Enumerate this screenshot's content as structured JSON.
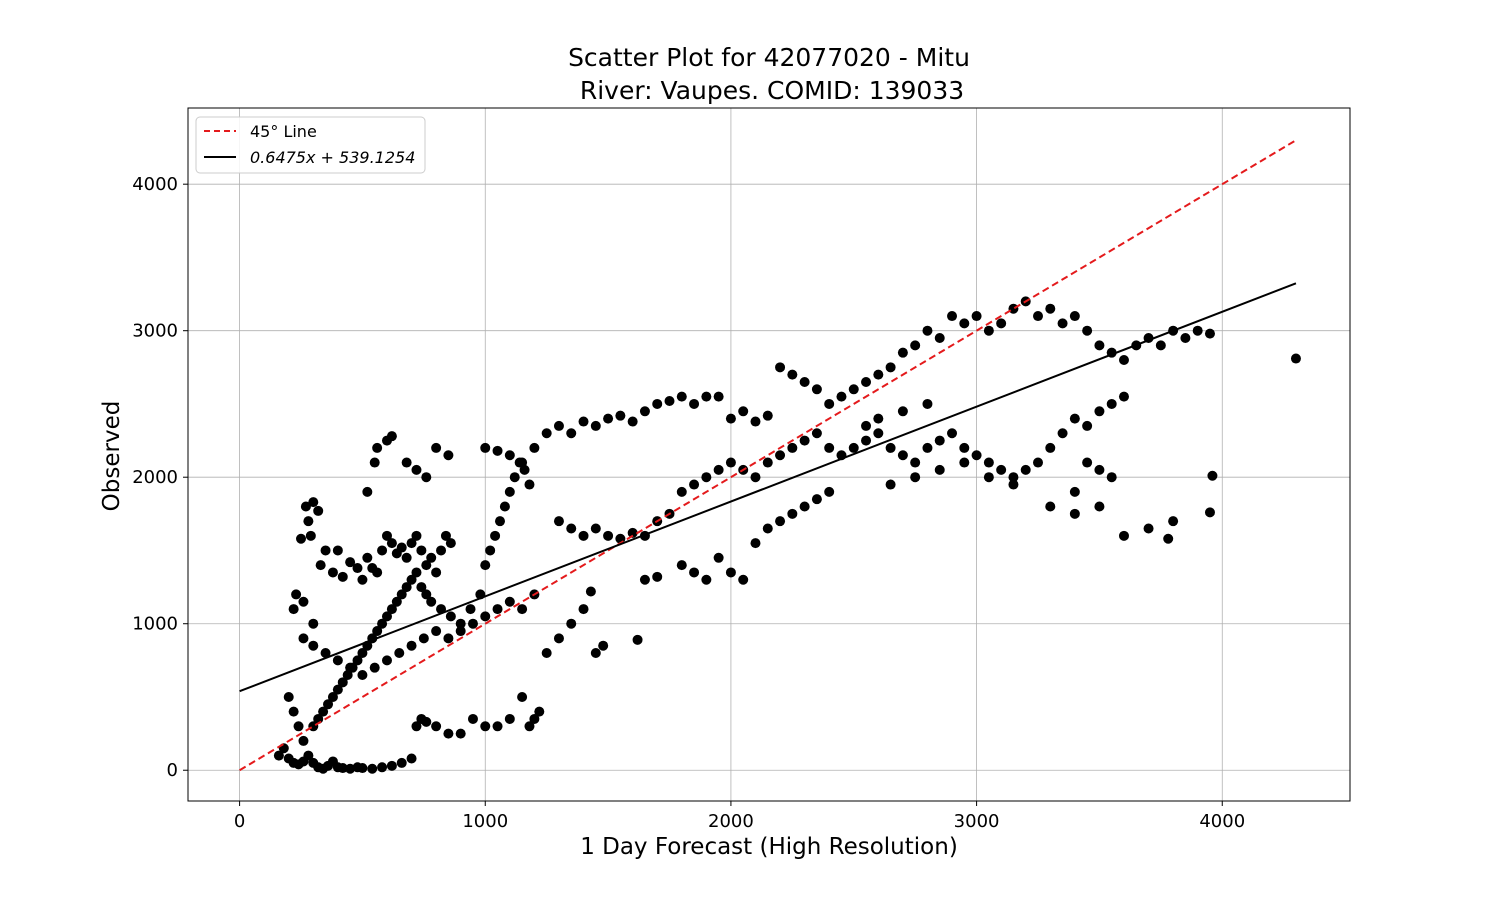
{
  "chart_data": {
    "type": "scatter",
    "title_lines": [
      "Scatter Plot for 42077020 - Mitu",
      "River: Vaupes. COMID: 139033"
    ],
    "xlabel": "1 Day Forecast (High Resolution)",
    "ylabel": "Observed",
    "xlim": [
      -210,
      4520
    ],
    "ylim": [
      -210,
      4520
    ],
    "xticks": [
      "0",
      "1000",
      "2000",
      "3000",
      "4000"
    ],
    "yticks": [
      "0",
      "1000",
      "2000",
      "3000",
      "4000"
    ],
    "grid": true,
    "legend_position": "top-left",
    "legend": [
      {
        "label": "45° Line",
        "style": "dashed",
        "color": "#e41a1c"
      },
      {
        "label": "0.6475x + 539.1254",
        "style": "solid",
        "color": "#000000"
      }
    ],
    "lines": [
      {
        "type": "identity",
        "x": [
          0,
          4300
        ],
        "y": [
          0,
          4300
        ],
        "color": "#e41a1c",
        "dash": true
      },
      {
        "type": "fit",
        "slope": 0.6475,
        "intercept": 539.1254,
        "x": [
          0,
          4300
        ],
        "color": "#000000",
        "dash": false
      }
    ],
    "point_color": "#000000",
    "points": [
      [
        270,
        1800
      ],
      [
        300,
        1830
      ],
      [
        320,
        1770
      ],
      [
        280,
        1700
      ],
      [
        290,
        1600
      ],
      [
        250,
        1580
      ],
      [
        230,
        1200
      ],
      [
        260,
        1150
      ],
      [
        220,
        1100
      ],
      [
        300,
        1000
      ],
      [
        350,
        1500
      ],
      [
        330,
        1400
      ],
      [
        380,
        1350
      ],
      [
        400,
        1500
      ],
      [
        420,
        1320
      ],
      [
        450,
        1420
      ],
      [
        480,
        1380
      ],
      [
        500,
        1300
      ],
      [
        520,
        1450
      ],
      [
        540,
        1380
      ],
      [
        560,
        1350
      ],
      [
        580,
        1500
      ],
      [
        600,
        1600
      ],
      [
        620,
        1550
      ],
      [
        640,
        1480
      ],
      [
        660,
        1520
      ],
      [
        680,
        1450
      ],
      [
        700,
        1550
      ],
      [
        720,
        1600
      ],
      [
        740,
        1500
      ],
      [
        760,
        1400
      ],
      [
        780,
        1450
      ],
      [
        800,
        1350
      ],
      [
        820,
        1500
      ],
      [
        840,
        1600
      ],
      [
        860,
        1550
      ],
      [
        600,
        2250
      ],
      [
        620,
        2280
      ],
      [
        560,
        2200
      ],
      [
        550,
        2100
      ],
      [
        680,
        2100
      ],
      [
        720,
        2050
      ],
      [
        760,
        2000
      ],
      [
        800,
        2200
      ],
      [
        850,
        2150
      ],
      [
        520,
        1900
      ],
      [
        260,
        900
      ],
      [
        300,
        850
      ],
      [
        350,
        800
      ],
      [
        400,
        750
      ],
      [
        450,
        700
      ],
      [
        500,
        650
      ],
      [
        550,
        700
      ],
      [
        600,
        750
      ],
      [
        650,
        800
      ],
      [
        700,
        850
      ],
      [
        750,
        900
      ],
      [
        800,
        950
      ],
      [
        850,
        900
      ],
      [
        900,
        950
      ],
      [
        950,
        1000
      ],
      [
        1000,
        1050
      ],
      [
        1050,
        1100
      ],
      [
        1100,
        1150
      ],
      [
        1150,
        1100
      ],
      [
        1200,
        1200
      ],
      [
        200,
        500
      ],
      [
        220,
        400
      ],
      [
        240,
        300
      ],
      [
        260,
        200
      ],
      [
        280,
        100
      ],
      [
        300,
        50
      ],
      [
        320,
        20
      ],
      [
        340,
        10
      ],
      [
        360,
        30
      ],
      [
        380,
        60
      ],
      [
        400,
        20
      ],
      [
        420,
        15
      ],
      [
        450,
        10
      ],
      [
        480,
        20
      ],
      [
        500,
        15
      ],
      [
        540,
        10
      ],
      [
        580,
        20
      ],
      [
        620,
        30
      ],
      [
        660,
        50
      ],
      [
        700,
        80
      ],
      [
        720,
        300
      ],
      [
        740,
        350
      ],
      [
        760,
        330
      ],
      [
        800,
        300
      ],
      [
        850,
        250
      ],
      [
        900,
        250
      ],
      [
        950,
        350
      ],
      [
        1000,
        300
      ],
      [
        1050,
        300
      ],
      [
        1100,
        350
      ],
      [
        1150,
        500
      ],
      [
        1180,
        300
      ],
      [
        1200,
        350
      ],
      [
        1220,
        400
      ],
      [
        180,
        150
      ],
      [
        160,
        100
      ],
      [
        200,
        80
      ],
      [
        220,
        50
      ],
      [
        240,
        40
      ],
      [
        260,
        60
      ],
      [
        300,
        300
      ],
      [
        320,
        350
      ],
      [
        340,
        400
      ],
      [
        360,
        450
      ],
      [
        380,
        500
      ],
      [
        400,
        550
      ],
      [
        420,
        600
      ],
      [
        440,
        650
      ],
      [
        460,
        700
      ],
      [
        480,
        750
      ],
      [
        500,
        800
      ],
      [
        520,
        850
      ],
      [
        540,
        900
      ],
      [
        560,
        950
      ],
      [
        580,
        1000
      ],
      [
        600,
        1050
      ],
      [
        620,
        1100
      ],
      [
        640,
        1150
      ],
      [
        660,
        1200
      ],
      [
        680,
        1250
      ],
      [
        700,
        1300
      ],
      [
        720,
        1350
      ],
      [
        740,
        1250
      ],
      [
        760,
        1200
      ],
      [
        780,
        1150
      ],
      [
        820,
        1100
      ],
      [
        860,
        1050
      ],
      [
        900,
        1000
      ],
      [
        940,
        1100
      ],
      [
        980,
        1200
      ],
      [
        1000,
        1400
      ],
      [
        1020,
        1500
      ],
      [
        1040,
        1600
      ],
      [
        1060,
        1700
      ],
      [
        1080,
        1800
      ],
      [
        1100,
        1900
      ],
      [
        1120,
        2000
      ],
      [
        1140,
        2100
      ],
      [
        1160,
        2050
      ],
      [
        1180,
        1950
      ],
      [
        1000,
        2200
      ],
      [
        1050,
        2180
      ],
      [
        1100,
        2150
      ],
      [
        1150,
        2100
      ],
      [
        1200,
        2200
      ],
      [
        1250,
        2300
      ],
      [
        1300,
        2350
      ],
      [
        1350,
        2300
      ],
      [
        1400,
        2380
      ],
      [
        1450,
        2350
      ],
      [
        1500,
        2400
      ],
      [
        1550,
        2420
      ],
      [
        1600,
        2380
      ],
      [
        1650,
        2450
      ],
      [
        1700,
        2500
      ],
      [
        1750,
        2520
      ],
      [
        1800,
        2550
      ],
      [
        1850,
        2500
      ],
      [
        1900,
        2550
      ],
      [
        1950,
        2550
      ],
      [
        2000,
        2400
      ],
      [
        2050,
        2450
      ],
      [
        2100,
        2380
      ],
      [
        2150,
        2420
      ],
      [
        2200,
        2750
      ],
      [
        2250,
        2700
      ],
      [
        2300,
        2650
      ],
      [
        2350,
        2600
      ],
      [
        2400,
        2500
      ],
      [
        2450,
        2550
      ],
      [
        2500,
        2600
      ],
      [
        2550,
        2650
      ],
      [
        2600,
        2700
      ],
      [
        2650,
        2750
      ],
      [
        2700,
        2850
      ],
      [
        2750,
        2900
      ],
      [
        2800,
        3000
      ],
      [
        2850,
        2950
      ],
      [
        2900,
        3100
      ],
      [
        2950,
        3050
      ],
      [
        3000,
        3100
      ],
      [
        3050,
        3000
      ],
      [
        3100,
        3050
      ],
      [
        3150,
        3150
      ],
      [
        3200,
        3200
      ],
      [
        3250,
        3100
      ],
      [
        3300,
        3150
      ],
      [
        3350,
        3050
      ],
      [
        3400,
        3100
      ],
      [
        3450,
        3000
      ],
      [
        3500,
        2900
      ],
      [
        3550,
        2850
      ],
      [
        3600,
        2800
      ],
      [
        3650,
        2900
      ],
      [
        3700,
        2950
      ],
      [
        3750,
        2900
      ],
      [
        3800,
        3000
      ],
      [
        3850,
        2950
      ],
      [
        3900,
        3000
      ],
      [
        3950,
        2980
      ],
      [
        1300,
        1700
      ],
      [
        1350,
        1650
      ],
      [
        1400,
        1600
      ],
      [
        1450,
        1650
      ],
      [
        1500,
        1600
      ],
      [
        1550,
        1580
      ],
      [
        1600,
        1620
      ],
      [
        1650,
        1600
      ],
      [
        1700,
        1700
      ],
      [
        1750,
        1750
      ],
      [
        1800,
        1900
      ],
      [
        1850,
        1950
      ],
      [
        1900,
        2000
      ],
      [
        1950,
        2050
      ],
      [
        2000,
        2100
      ],
      [
        2050,
        2050
      ],
      [
        2100,
        2000
      ],
      [
        2150,
        2100
      ],
      [
        2200,
        2150
      ],
      [
        2250,
        2200
      ],
      [
        2300,
        2250
      ],
      [
        2350,
        2300
      ],
      [
        2400,
        2200
      ],
      [
        2450,
        2150
      ],
      [
        2500,
        2200
      ],
      [
        2550,
        2250
      ],
      [
        2600,
        2300
      ],
      [
        2650,
        2200
      ],
      [
        2700,
        2150
      ],
      [
        2750,
        2100
      ],
      [
        2800,
        2200
      ],
      [
        2850,
        2250
      ],
      [
        2900,
        2300
      ],
      [
        2950,
        2200
      ],
      [
        3000,
        2150
      ],
      [
        3050,
        2100
      ],
      [
        3100,
        2050
      ],
      [
        3150,
        2000
      ],
      [
        3200,
        2050
      ],
      [
        3250,
        2100
      ],
      [
        3300,
        2200
      ],
      [
        3350,
        2300
      ],
      [
        3400,
        2400
      ],
      [
        3450,
        2350
      ],
      [
        3500,
        2450
      ],
      [
        3550,
        2500
      ],
      [
        3600,
        2550
      ],
      [
        1800,
        1400
      ],
      [
        1850,
        1350
      ],
      [
        1900,
        1300
      ],
      [
        1950,
        1450
      ],
      [
        2000,
        1350
      ],
      [
        2050,
        1300
      ],
      [
        2100,
        1550
      ],
      [
        2150,
        1650
      ],
      [
        2200,
        1700
      ],
      [
        2250,
        1750
      ],
      [
        2300,
        1800
      ],
      [
        2350,
        1850
      ],
      [
        2400,
        1900
      ],
      [
        3300,
        1800
      ],
      [
        3400,
        1750
      ],
      [
        3500,
        1800
      ],
      [
        3600,
        1600
      ],
      [
        3700,
        1650
      ],
      [
        3780,
        1580
      ],
      [
        3800,
        1700
      ],
      [
        3950,
        1760
      ],
      [
        3960,
        2010
      ],
      [
        4300,
        2810
      ],
      [
        3550,
        2000
      ],
      [
        3500,
        2050
      ],
      [
        3450,
        2100
      ],
      [
        3400,
        1900
      ],
      [
        1620,
        890
      ],
      [
        1650,
        1300
      ],
      [
        1700,
        1320
      ],
      [
        1430,
        1220
      ],
      [
        1400,
        1100
      ],
      [
        1350,
        1000
      ],
      [
        1300,
        900
      ],
      [
        1250,
        800
      ],
      [
        1450,
        800
      ],
      [
        1480,
        850
      ],
      [
        2650,
        1950
      ],
      [
        2750,
        2000
      ],
      [
        2850,
        2050
      ],
      [
        2950,
        2100
      ],
      [
        3050,
        2000
      ],
      [
        3150,
        1950
      ],
      [
        2550,
        2350
      ],
      [
        2600,
        2400
      ],
      [
        2700,
        2450
      ],
      [
        2800,
        2500
      ]
    ]
  }
}
